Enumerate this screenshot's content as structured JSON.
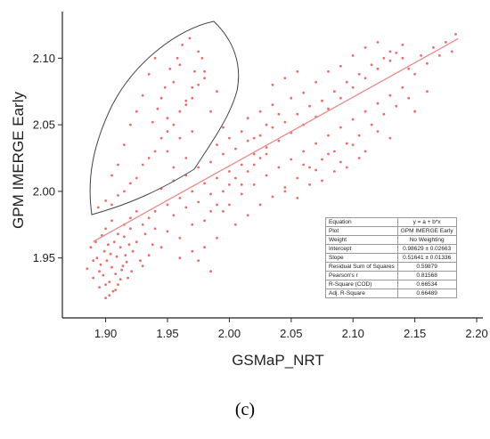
{
  "panel_label": "(c)",
  "chart_data": {
    "type": "scatter",
    "xlabel": "GSMaP_NRT",
    "ylabel": "GPM IMERGE Early",
    "xlim": [
      1.865,
      2.205
    ],
    "ylim": [
      1.905,
      2.135
    ],
    "x_ticks": [
      "1.90",
      "1.95",
      "2.00",
      "2.05",
      "2.10",
      "2.15",
      "2.20"
    ],
    "y_ticks": [
      "1.95",
      "2.00",
      "2.05",
      "2.10"
    ],
    "grid": false,
    "point_color": "#f26b6b",
    "fit_line_color": "#e88a8a",
    "fit_line": {
      "intercept": 0.98629,
      "slope": 0.51641,
      "x_range": [
        1.89,
        2.185
      ]
    },
    "series": [
      {
        "points": [
          [
            1.885,
            1.942
          ],
          [
            1.888,
            1.958
          ],
          [
            1.89,
            1.935
          ],
          [
            1.892,
            1.962
          ],
          [
            1.893,
            1.95
          ],
          [
            1.895,
            1.928
          ],
          [
            1.896,
            1.945
          ],
          [
            1.897,
            1.967
          ],
          [
            1.898,
            1.937
          ],
          [
            1.899,
            1.955
          ],
          [
            1.9,
            1.92
          ],
          [
            1.901,
            1.948
          ],
          [
            1.902,
            1.96
          ],
          [
            1.903,
            1.932
          ],
          [
            1.904,
            1.953
          ],
          [
            1.905,
            1.943
          ],
          [
            1.906,
            1.925
          ],
          [
            1.907,
            1.962
          ],
          [
            1.908,
            1.938
          ],
          [
            1.909,
            1.951
          ],
          [
            1.91,
            1.93
          ],
          [
            1.912,
            1.958
          ],
          [
            1.913,
            1.941
          ],
          [
            1.915,
            1.966
          ],
          [
            1.917,
            1.947
          ],
          [
            1.918,
            1.935
          ],
          [
            1.92,
            1.972
          ],
          [
            1.922,
            1.955
          ],
          [
            1.925,
            1.962
          ],
          [
            1.928,
            1.948
          ],
          [
            1.93,
            1.975
          ],
          [
            1.932,
            1.968
          ],
          [
            1.935,
            1.98
          ],
          [
            1.938,
            1.96
          ],
          [
            1.94,
            1.985
          ],
          [
            1.894,
            1.988
          ],
          [
            1.9,
            1.993
          ],
          [
            1.905,
            2.012
          ],
          [
            1.91,
            2.02
          ],
          [
            1.915,
            2.035
          ],
          [
            1.92,
            2.05
          ],
          [
            1.925,
            2.06
          ],
          [
            1.93,
            2.072
          ],
          [
            1.935,
            2.088
          ],
          [
            1.94,
            2.1
          ],
          [
            1.945,
            2.07
          ],
          [
            1.95,
            2.055
          ],
          [
            1.955,
            2.082
          ],
          [
            1.96,
            2.095
          ],
          [
            1.965,
            2.068
          ],
          [
            1.97,
            2.078
          ],
          [
            1.975,
            2.105
          ],
          [
            1.98,
            2.09
          ],
          [
            1.985,
            2.06
          ],
          [
            1.99,
            2.075
          ],
          [
            1.95,
            2.03
          ],
          [
            1.955,
            2.018
          ],
          [
            1.96,
            2.04
          ],
          [
            1.965,
            2.025
          ],
          [
            1.97,
            2.045
          ],
          [
            1.945,
            2.002
          ],
          [
            1.95,
            1.99
          ],
          [
            1.955,
            2.008
          ],
          [
            1.96,
            1.995
          ],
          [
            1.965,
            2.012
          ],
          [
            1.97,
            2.0
          ],
          [
            1.975,
            2.018
          ],
          [
            1.98,
            2.006
          ],
          [
            1.985,
            2.022
          ],
          [
            1.99,
            2.01
          ],
          [
            1.995,
            2.028
          ],
          [
            2.0,
            2.015
          ],
          [
            2.005,
            2.032
          ],
          [
            2.01,
            2.02
          ],
          [
            2.015,
            2.038
          ],
          [
            2.02,
            2.028
          ],
          [
            2.025,
            2.042
          ],
          [
            2.03,
            2.033
          ],
          [
            2.035,
            2.048
          ],
          [
            2.04,
            2.038
          ],
          [
            2.045,
            2.052
          ],
          [
            2.05,
            2.044
          ],
          [
            2.055,
            2.058
          ],
          [
            2.06,
            2.05
          ],
          [
            2.065,
            2.064
          ],
          [
            2.07,
            2.056
          ],
          [
            2.075,
            2.068
          ],
          [
            2.08,
            2.062
          ],
          [
            2.085,
            2.075
          ],
          [
            2.09,
            2.07
          ],
          [
            2.095,
            2.082
          ],
          [
            2.1,
            2.078
          ],
          [
            2.105,
            2.088
          ],
          [
            2.11,
            2.085
          ],
          [
            2.115,
            2.095
          ],
          [
            2.12,
            2.092
          ],
          [
            2.125,
            2.1
          ],
          [
            2.13,
            2.098
          ],
          [
            2.135,
            2.104
          ],
          [
            2.14,
            2.1
          ],
          [
            2.145,
            2.092
          ],
          [
            2.15,
            2.088
          ],
          [
            2.155,
            2.102
          ],
          [
            2.16,
            2.096
          ],
          [
            2.165,
            2.108
          ],
          [
            2.17,
            2.102
          ],
          [
            2.175,
            2.112
          ],
          [
            2.18,
            2.105
          ],
          [
            2.183,
            2.118
          ],
          [
            2.0,
            1.99
          ],
          [
            2.005,
            1.975
          ],
          [
            2.01,
            1.998
          ],
          [
            2.015,
            1.982
          ],
          [
            2.02,
            2.005
          ],
          [
            2.025,
            1.99
          ],
          [
            2.03,
            2.012
          ],
          [
            2.035,
            1.996
          ],
          [
            2.04,
            2.018
          ],
          [
            2.045,
            2.003
          ],
          [
            2.05,
            2.024
          ],
          [
            2.055,
            2.01
          ],
          [
            2.06,
            2.03
          ],
          [
            2.065,
            2.018
          ],
          [
            2.07,
            2.036
          ],
          [
            2.075,
            2.024
          ],
          [
            2.08,
            2.042
          ],
          [
            2.085,
            2.03
          ],
          [
            2.09,
            2.048
          ],
          [
            2.095,
            2.036
          ],
          [
            2.1,
            2.054
          ],
          [
            2.105,
            2.042
          ],
          [
            2.11,
            2.06
          ],
          [
            2.115,
            2.05
          ],
          [
            2.12,
            2.066
          ],
          [
            2.125,
            2.058
          ],
          [
            2.13,
            2.072
          ],
          [
            2.135,
            2.064
          ],
          [
            2.14,
            2.078
          ],
          [
            2.145,
            2.07
          ],
          [
            1.95,
            1.97
          ],
          [
            1.955,
            1.982
          ],
          [
            1.96,
            1.965
          ],
          [
            1.965,
            1.988
          ],
          [
            1.97,
            1.975
          ],
          [
            1.975,
            1.992
          ],
          [
            1.98,
            1.978
          ],
          [
            1.985,
            1.998
          ],
          [
            1.99,
            1.965
          ],
          [
            1.995,
            1.985
          ],
          [
            1.945,
            1.958
          ],
          [
            1.94,
            1.972
          ],
          [
            1.935,
            1.952
          ],
          [
            1.93,
            1.944
          ],
          [
            1.925,
            1.985
          ],
          [
            1.975,
            1.948
          ],
          [
            1.98,
            1.958
          ],
          [
            1.985,
            1.94
          ],
          [
            1.97,
            1.955
          ],
          [
            1.96,
            1.95
          ],
          [
            2.01,
            2.045
          ],
          [
            2.015,
            2.055
          ],
          [
            2.02,
            2.04
          ],
          [
            2.025,
            2.06
          ],
          [
            2.03,
            2.05
          ],
          [
            2.035,
            2.065
          ],
          [
            2.04,
            2.058
          ],
          [
            2.0,
            2.04
          ],
          [
            1.995,
            2.048
          ],
          [
            1.99,
            2.035
          ],
          [
            2.05,
            2.07
          ],
          [
            2.06,
            2.074
          ],
          [
            2.07,
            2.082
          ],
          [
            2.08,
            2.09
          ],
          [
            2.09,
            2.094
          ],
          [
            2.1,
            2.102
          ],
          [
            2.11,
            2.108
          ],
          [
            2.12,
            2.112
          ],
          [
            2.13,
            2.105
          ],
          [
            2.14,
            2.11
          ],
          [
            2.06,
            2.02
          ],
          [
            2.07,
            2.016
          ],
          [
            2.08,
            2.028
          ],
          [
            2.09,
            2.022
          ],
          [
            2.1,
            2.035
          ],
          [
            2.11,
            2.03
          ],
          [
            2.12,
            2.045
          ],
          [
            2.13,
            2.04
          ],
          [
            2.15,
            2.06
          ],
          [
            2.16,
            2.075
          ],
          [
            1.9,
            1.972
          ],
          [
            1.905,
            1.978
          ],
          [
            1.91,
            1.968
          ],
          [
            1.915,
            1.975
          ],
          [
            1.92,
            1.98
          ],
          [
            1.89,
            1.948
          ],
          [
            1.895,
            1.94
          ],
          [
            1.9,
            1.93
          ],
          [
            1.903,
            1.922
          ],
          [
            1.908,
            1.926
          ],
          [
            1.912,
            1.934
          ],
          [
            1.914,
            1.944
          ],
          [
            1.916,
            1.952
          ],
          [
            1.919,
            1.96
          ],
          [
            1.921,
            1.94
          ],
          [
            1.905,
            1.99
          ],
          [
            1.91,
            1.997
          ],
          [
            1.915,
            2.0
          ],
          [
            1.92,
            2.006
          ],
          [
            1.925,
            2.01
          ],
          [
            1.93,
            2.02
          ],
          [
            1.935,
            2.025
          ],
          [
            1.94,
            2.03
          ],
          [
            1.945,
            2.04
          ],
          [
            1.95,
            2.045
          ],
          [
            1.955,
            2.05
          ],
          [
            1.96,
            2.06
          ],
          [
            1.965,
            2.065
          ],
          [
            1.97,
            2.07
          ],
          [
            1.975,
            2.08
          ],
          [
            1.98,
            2.085
          ],
          [
            1.938,
            2.052
          ],
          [
            1.942,
            2.062
          ],
          [
            1.948,
            2.078
          ],
          [
            1.952,
            2.092
          ],
          [
            1.958,
            2.1
          ],
          [
            1.962,
            2.11
          ],
          [
            1.968,
            2.115
          ],
          [
            1.972,
            2.09
          ],
          [
            1.978,
            2.1
          ],
          [
            2.035,
            2.08
          ],
          [
            2.045,
            2.085
          ],
          [
            2.055,
            2.09
          ],
          [
            2.045,
            2.0
          ],
          [
            2.055,
            1.995
          ],
          [
            2.065,
            2.005
          ],
          [
            2.075,
            2.008
          ],
          [
            2.085,
            2.015
          ],
          [
            2.095,
            2.018
          ],
          [
            2.105,
            2.025
          ],
          [
            1.985,
            1.985
          ],
          [
            1.99,
            1.99
          ],
          [
            1.995,
            2.0
          ],
          [
            2.0,
            2.005
          ],
          [
            2.005,
            2.01
          ],
          [
            2.01,
            2.005
          ],
          [
            2.015,
            2.015
          ],
          [
            2.02,
            2.02
          ],
          [
            2.025,
            2.025
          ],
          [
            2.03,
            2.028
          ]
        ]
      }
    ]
  },
  "stats_table": {
    "rows": [
      {
        "label": "Equation",
        "value": "y = a + b*x"
      },
      {
        "label": "Plot",
        "value": "GPM IMERGE Early"
      },
      {
        "label": "Weight",
        "value": "No Weighting"
      },
      {
        "label": "Intercept",
        "value": "0.98629 ± 0.02663"
      },
      {
        "label": "Slope",
        "value": "0.51641 ± 0.01336"
      },
      {
        "label": "Residual Sum of Squares",
        "value": "0.59879"
      },
      {
        "label": "Pearson's r",
        "value": "0.81568"
      },
      {
        "label": "R-Square (COD)",
        "value": "0.66534"
      },
      {
        "label": "Adj. R-Square",
        "value": "0.66489"
      }
    ]
  }
}
